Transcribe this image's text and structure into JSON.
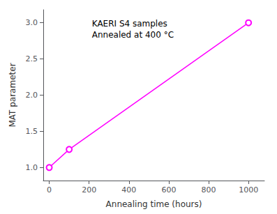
{
  "chart_data": {
    "type": "line",
    "x": [
      0,
      100,
      1000
    ],
    "values": [
      1.0,
      1.25,
      3.0
    ],
    "color": "#FF00FF",
    "marker": "circle",
    "xlabel": "Annealing time (hours)",
    "ylabel": "MAT parameter",
    "annotation": "KAERI S4 samples\nAnnealed at 400 °C",
    "xlim": [
      -30,
      1080
    ],
    "ylim": [
      0.82,
      3.18
    ],
    "xticks": [
      0,
      200,
      400,
      600,
      800,
      1000
    ],
    "yticks": [
      {
        "value": 1,
        "label": "1.0"
      },
      1.5,
      {
        "value": 2,
        "label": "2.0"
      },
      2.5,
      {
        "value": 3,
        "label": "3.0"
      }
    ],
    "grid": false
  }
}
